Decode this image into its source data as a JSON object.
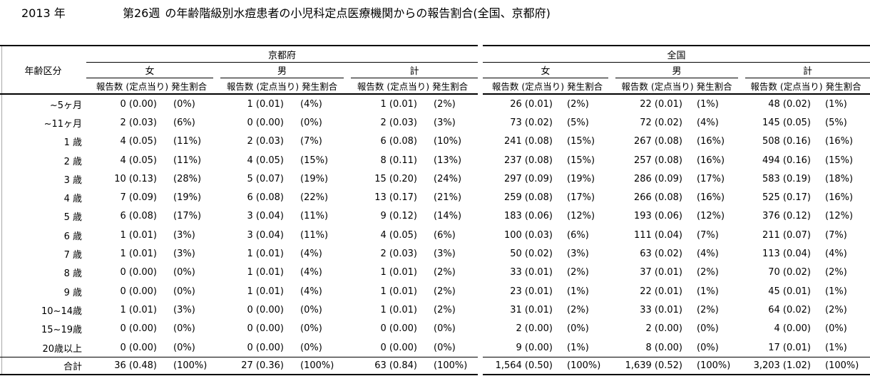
{
  "title": {
    "year": "2013 年",
    "week": "第26週",
    "rest": "の年齢階級別水痘患者の小児科定点医療機関からの報告割合(全国、京都府)"
  },
  "table": {
    "age_header": "年齢区分",
    "regions": [
      {
        "name": "京都府"
      },
      {
        "name": "全国"
      }
    ],
    "genders": [
      "女",
      "男",
      "計"
    ],
    "sub_headers": {
      "count": "報告数",
      "rate": "(定点当り)",
      "pct": "発生割合"
    },
    "rows": [
      {
        "age": "~5ヶ月",
        "kyoto": {
          "female": {
            "count": "0",
            "rate": "0.00",
            "pct": "0%"
          },
          "male": {
            "count": "1",
            "rate": "0.01",
            "pct": "4%"
          },
          "total": {
            "count": "1",
            "rate": "0.01",
            "pct": "2%"
          }
        },
        "national": {
          "female": {
            "count": "26",
            "rate": "0.01",
            "pct": "2%"
          },
          "male": {
            "count": "22",
            "rate": "0.01",
            "pct": "1%"
          },
          "total": {
            "count": "48",
            "rate": "0.02",
            "pct": "1%"
          }
        }
      },
      {
        "age": "~11ヶ月",
        "kyoto": {
          "female": {
            "count": "2",
            "rate": "0.03",
            "pct": "6%"
          },
          "male": {
            "count": "0",
            "rate": "0.00",
            "pct": "0%"
          },
          "total": {
            "count": "2",
            "rate": "0.03",
            "pct": "3%"
          }
        },
        "national": {
          "female": {
            "count": "73",
            "rate": "0.02",
            "pct": "5%"
          },
          "male": {
            "count": "72",
            "rate": "0.02",
            "pct": "4%"
          },
          "total": {
            "count": "145",
            "rate": "0.05",
            "pct": "5%"
          }
        }
      },
      {
        "age": "1 歳",
        "kyoto": {
          "female": {
            "count": "4",
            "rate": "0.05",
            "pct": "11%"
          },
          "male": {
            "count": "2",
            "rate": "0.03",
            "pct": "7%"
          },
          "total": {
            "count": "6",
            "rate": "0.08",
            "pct": "10%"
          }
        },
        "national": {
          "female": {
            "count": "241",
            "rate": "0.08",
            "pct": "15%"
          },
          "male": {
            "count": "267",
            "rate": "0.08",
            "pct": "16%"
          },
          "total": {
            "count": "508",
            "rate": "0.16",
            "pct": "16%"
          }
        }
      },
      {
        "age": "2 歳",
        "kyoto": {
          "female": {
            "count": "4",
            "rate": "0.05",
            "pct": "11%"
          },
          "male": {
            "count": "4",
            "rate": "0.05",
            "pct": "15%"
          },
          "total": {
            "count": "8",
            "rate": "0.11",
            "pct": "13%"
          }
        },
        "national": {
          "female": {
            "count": "237",
            "rate": "0.08",
            "pct": "15%"
          },
          "male": {
            "count": "257",
            "rate": "0.08",
            "pct": "16%"
          },
          "total": {
            "count": "494",
            "rate": "0.16",
            "pct": "15%"
          }
        }
      },
      {
        "age": "3 歳",
        "kyoto": {
          "female": {
            "count": "10",
            "rate": "0.13",
            "pct": "28%"
          },
          "male": {
            "count": "5",
            "rate": "0.07",
            "pct": "19%"
          },
          "total": {
            "count": "15",
            "rate": "0.20",
            "pct": "24%"
          }
        },
        "national": {
          "female": {
            "count": "297",
            "rate": "0.09",
            "pct": "19%"
          },
          "male": {
            "count": "286",
            "rate": "0.09",
            "pct": "17%"
          },
          "total": {
            "count": "583",
            "rate": "0.19",
            "pct": "18%"
          }
        }
      },
      {
        "age": "4 歳",
        "kyoto": {
          "female": {
            "count": "7",
            "rate": "0.09",
            "pct": "19%"
          },
          "male": {
            "count": "6",
            "rate": "0.08",
            "pct": "22%"
          },
          "total": {
            "count": "13",
            "rate": "0.17",
            "pct": "21%"
          }
        },
        "national": {
          "female": {
            "count": "259",
            "rate": "0.08",
            "pct": "17%"
          },
          "male": {
            "count": "266",
            "rate": "0.08",
            "pct": "16%"
          },
          "total": {
            "count": "525",
            "rate": "0.17",
            "pct": "16%"
          }
        }
      },
      {
        "age": "5 歳",
        "kyoto": {
          "female": {
            "count": "6",
            "rate": "0.08",
            "pct": "17%"
          },
          "male": {
            "count": "3",
            "rate": "0.04",
            "pct": "11%"
          },
          "total": {
            "count": "9",
            "rate": "0.12",
            "pct": "14%"
          }
        },
        "national": {
          "female": {
            "count": "183",
            "rate": "0.06",
            "pct": "12%"
          },
          "male": {
            "count": "193",
            "rate": "0.06",
            "pct": "12%"
          },
          "total": {
            "count": "376",
            "rate": "0.12",
            "pct": "12%"
          }
        }
      },
      {
        "age": "6 歳",
        "kyoto": {
          "female": {
            "count": "1",
            "rate": "0.01",
            "pct": "3%"
          },
          "male": {
            "count": "3",
            "rate": "0.04",
            "pct": "11%"
          },
          "total": {
            "count": "4",
            "rate": "0.05",
            "pct": "6%"
          }
        },
        "national": {
          "female": {
            "count": "100",
            "rate": "0.03",
            "pct": "6%"
          },
          "male": {
            "count": "111",
            "rate": "0.04",
            "pct": "7%"
          },
          "total": {
            "count": "211",
            "rate": "0.07",
            "pct": "7%"
          }
        }
      },
      {
        "age": "7 歳",
        "kyoto": {
          "female": {
            "count": "1",
            "rate": "0.01",
            "pct": "3%"
          },
          "male": {
            "count": "1",
            "rate": "0.01",
            "pct": "4%"
          },
          "total": {
            "count": "2",
            "rate": "0.03",
            "pct": "3%"
          }
        },
        "national": {
          "female": {
            "count": "50",
            "rate": "0.02",
            "pct": "3%"
          },
          "male": {
            "count": "63",
            "rate": "0.02",
            "pct": "4%"
          },
          "total": {
            "count": "113",
            "rate": "0.04",
            "pct": "4%"
          }
        }
      },
      {
        "age": "8 歳",
        "kyoto": {
          "female": {
            "count": "0",
            "rate": "0.00",
            "pct": "0%"
          },
          "male": {
            "count": "1",
            "rate": "0.01",
            "pct": "4%"
          },
          "total": {
            "count": "1",
            "rate": "0.01",
            "pct": "2%"
          }
        },
        "national": {
          "female": {
            "count": "33",
            "rate": "0.01",
            "pct": "2%"
          },
          "male": {
            "count": "37",
            "rate": "0.01",
            "pct": "2%"
          },
          "total": {
            "count": "70",
            "rate": "0.02",
            "pct": "2%"
          }
        }
      },
      {
        "age": "9 歳",
        "kyoto": {
          "female": {
            "count": "0",
            "rate": "0.00",
            "pct": "0%"
          },
          "male": {
            "count": "1",
            "rate": "0.01",
            "pct": "4%"
          },
          "total": {
            "count": "1",
            "rate": "0.01",
            "pct": "2%"
          }
        },
        "national": {
          "female": {
            "count": "23",
            "rate": "0.01",
            "pct": "1%"
          },
          "male": {
            "count": "22",
            "rate": "0.01",
            "pct": "1%"
          },
          "total": {
            "count": "45",
            "rate": "0.01",
            "pct": "1%"
          }
        }
      },
      {
        "age": "10~14歳",
        "kyoto": {
          "female": {
            "count": "1",
            "rate": "0.01",
            "pct": "3%"
          },
          "male": {
            "count": "0",
            "rate": "0.00",
            "pct": "0%"
          },
          "total": {
            "count": "1",
            "rate": "0.01",
            "pct": "2%"
          }
        },
        "national": {
          "female": {
            "count": "31",
            "rate": "0.01",
            "pct": "2%"
          },
          "male": {
            "count": "33",
            "rate": "0.01",
            "pct": "2%"
          },
          "total": {
            "count": "64",
            "rate": "0.02",
            "pct": "2%"
          }
        }
      },
      {
        "age": "15~19歳",
        "kyoto": {
          "female": {
            "count": "0",
            "rate": "0.00",
            "pct": "0%"
          },
          "male": {
            "count": "0",
            "rate": "0.00",
            "pct": "0%"
          },
          "total": {
            "count": "0",
            "rate": "0.00",
            "pct": "0%"
          }
        },
        "national": {
          "female": {
            "count": "2",
            "rate": "0.00",
            "pct": "0%"
          },
          "male": {
            "count": "2",
            "rate": "0.00",
            "pct": "0%"
          },
          "total": {
            "count": "4",
            "rate": "0.00",
            "pct": "0%"
          }
        }
      },
      {
        "age": "20歳以上",
        "kyoto": {
          "female": {
            "count": "0",
            "rate": "0.00",
            "pct": "0%"
          },
          "male": {
            "count": "0",
            "rate": "0.00",
            "pct": "0%"
          },
          "total": {
            "count": "0",
            "rate": "0.00",
            "pct": "0%"
          }
        },
        "national": {
          "female": {
            "count": "9",
            "rate": "0.00",
            "pct": "1%"
          },
          "male": {
            "count": "8",
            "rate": "0.00",
            "pct": "0%"
          },
          "total": {
            "count": "17",
            "rate": "0.01",
            "pct": "1%"
          }
        }
      }
    ],
    "total_row": {
      "age": "合計",
      "kyoto": {
        "female": {
          "count": "36",
          "rate": "0.48",
          "pct": "100%"
        },
        "male": {
          "count": "27",
          "rate": "0.36",
          "pct": "100%"
        },
        "total": {
          "count": "63",
          "rate": "0.84",
          "pct": "100%"
        }
      },
      "national": {
        "female": {
          "count": "1,564",
          "rate": "0.50",
          "pct": "100%"
        },
        "male": {
          "count": "1,639",
          "rate": "0.52",
          "pct": "100%"
        },
        "total": {
          "count": "3,203",
          "rate": "1.02",
          "pct": "100%"
        }
      }
    }
  }
}
